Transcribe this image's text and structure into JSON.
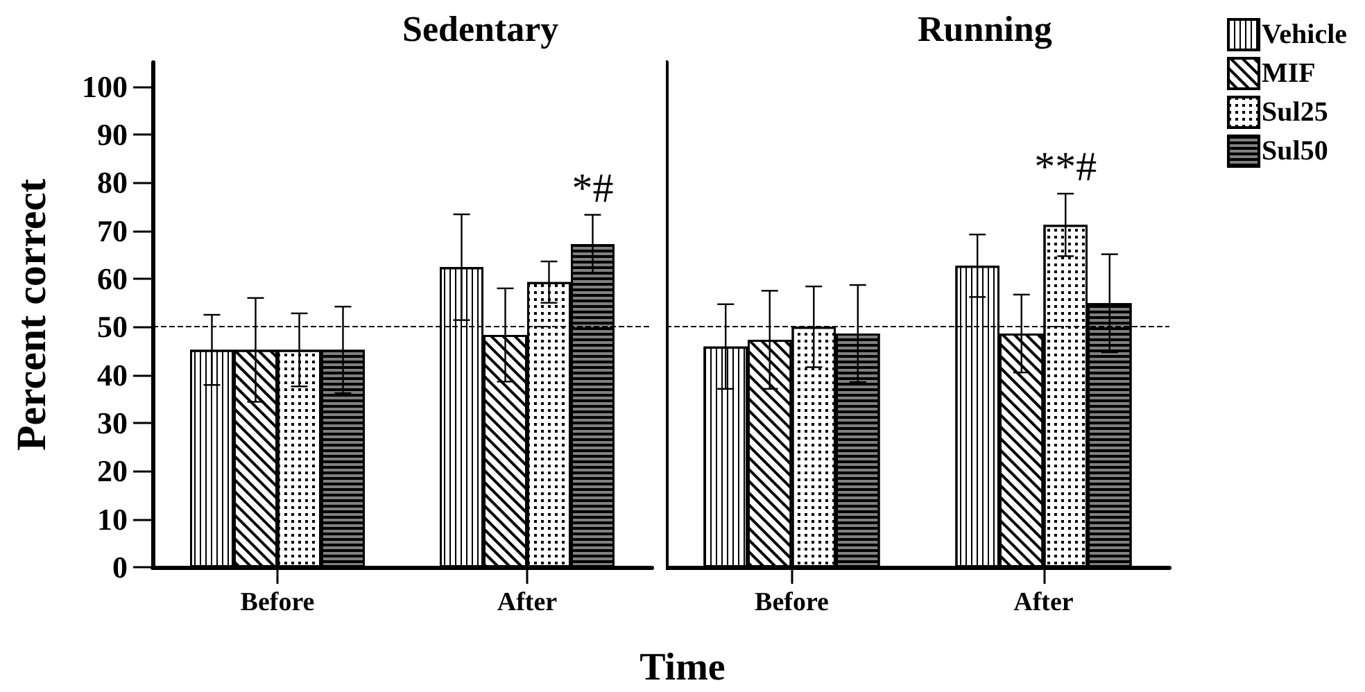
{
  "chart_data": [
    {
      "type": "bar",
      "title": "Sedentary",
      "ylabel": "Percent correct",
      "xlabel": "Time",
      "categories": [
        "Before",
        "After"
      ],
      "series": [
        {
          "color": "#ffffff",
          "values": [
            45.2,
            62.4
          ],
          "errors": [
            7.3,
            11
          ]
        },
        {
          "color": "#ffffff",
          "values": [
            45.2,
            48.3
          ],
          "errors": [
            10.8,
            9.7
          ]
        },
        {
          "color": "#ffffff",
          "values": [
            45.2,
            59.3
          ],
          "errors": [
            7.6,
            4.3
          ]
        },
        {
          "color": "#808080",
          "values": [
            45.2,
            67.2
          ],
          "errors": [
            9,
            6.1
          ]
        }
      ],
      "ylim": [
        0,
        105
      ],
      "yticks": [
        0,
        10,
        20,
        30,
        40,
        50,
        60,
        70,
        80,
        90,
        100
      ],
      "grid": false,
      "legend": false,
      "ref_lines": [
        {
          "axis": "y",
          "value": 50,
          "line_style": "dashed",
          "color": "#000000"
        }
      ],
      "annotations": [
        "*#"
      ]
    },
    {
      "type": "bar",
      "title": "Running",
      "categories": [
        "Before",
        "After"
      ],
      "series": [
        {
          "name": "Vehicle",
          "color": "#ffffff",
          "values": [
            45.9,
            62.7
          ],
          "errors": [
            8.8,
            6.5
          ]
        },
        {
          "name": "MIF",
          "color": "#ffffff",
          "values": [
            47.3,
            48.6
          ],
          "errors": [
            10.2,
            8.1
          ]
        },
        {
          "name": "Sul25",
          "color": "#ffffff",
          "values": [
            50,
            71.2
          ],
          "errors": [
            8.4,
            6.5
          ]
        },
        {
          "name": "Sul50",
          "color": "#808080",
          "values": [
            48.6,
            54.9
          ],
          "errors": [
            10.1,
            10.2
          ]
        }
      ],
      "ylim": [
        0,
        105
      ],
      "yticks": [
        0,
        10,
        20,
        30,
        40,
        50,
        60,
        70,
        80,
        90,
        100
      ],
      "grid": false,
      "legend": "top right",
      "tick_labels": "x",
      "ref_lines": [
        {
          "axis": "y",
          "value": 50,
          "line_style": "dashed",
          "color": "#000000"
        }
      ],
      "annotations": [
        "**#"
      ]
    }
  ]
}
